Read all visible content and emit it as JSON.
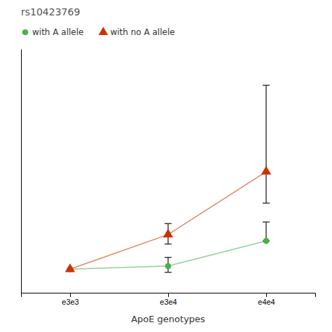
{
  "chart_data": {
    "type": "line",
    "title": "rs10423769",
    "xlabel": "ApoE genotypes",
    "categories": [
      "e3e3",
      "e3e4",
      "e4e4"
    ],
    "series": [
      {
        "name": "with A allele",
        "color": "#4daf4a",
        "marker": "circle",
        "values": [
          0.1,
          0.12,
          0.28
        ],
        "error_low": [
          0.0,
          0.04,
          0.0
        ],
        "error_high": [
          0.0,
          0.055,
          0.12
        ]
      },
      {
        "name": "with no A allele",
        "color": "#cc3300",
        "marker": "triangle",
        "values": [
          0.1,
          0.32,
          0.72
        ],
        "error_low": [
          0.0,
          0.06,
          0.2
        ],
        "error_high": [
          0.0,
          0.07,
          0.55
        ]
      }
    ],
    "ylim": [
      -0.05,
      1.5
    ],
    "yticks": [],
    "tick_labels": "x",
    "grid": false,
    "legend": "top"
  }
}
